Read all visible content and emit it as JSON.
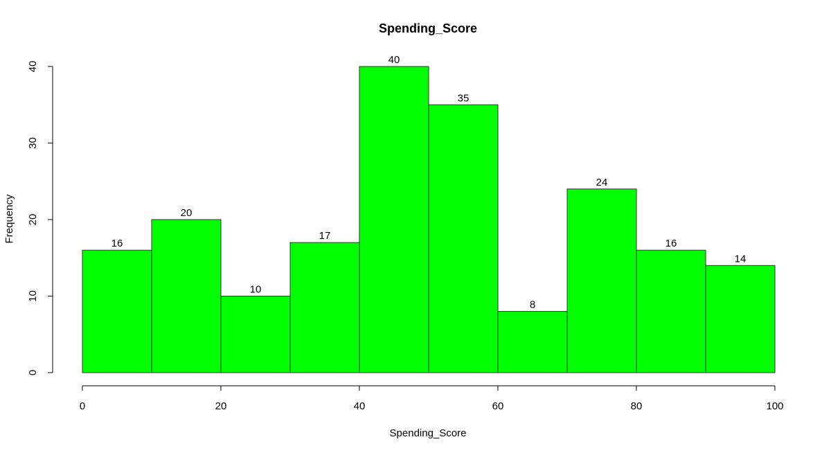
{
  "chart_data": {
    "type": "bar",
    "title": "Spending_Score",
    "xlabel": "Spending_Score",
    "ylabel": "Frequency",
    "bins": [
      {
        "start": 0,
        "end": 10,
        "count": 16
      },
      {
        "start": 10,
        "end": 20,
        "count": 20
      },
      {
        "start": 20,
        "end": 30,
        "count": 10
      },
      {
        "start": 30,
        "end": 40,
        "count": 17
      },
      {
        "start": 40,
        "end": 50,
        "count": 40
      },
      {
        "start": 50,
        "end": 60,
        "count": 35
      },
      {
        "start": 60,
        "end": 70,
        "count": 8
      },
      {
        "start": 70,
        "end": 80,
        "count": 24
      },
      {
        "start": 80,
        "end": 90,
        "count": 16
      },
      {
        "start": 90,
        "end": 100,
        "count": 14
      }
    ],
    "values": [
      16,
      20,
      10,
      17,
      40,
      35,
      8,
      24,
      16,
      14
    ],
    "xlim": [
      0,
      100
    ],
    "ylim": [
      0,
      40
    ],
    "x_ticks": [
      0,
      20,
      40,
      60,
      80,
      100
    ],
    "y_ticks": [
      0,
      10,
      20,
      30,
      40
    ],
    "bar_color": "#00ff00",
    "grid": false,
    "legend": "none"
  }
}
